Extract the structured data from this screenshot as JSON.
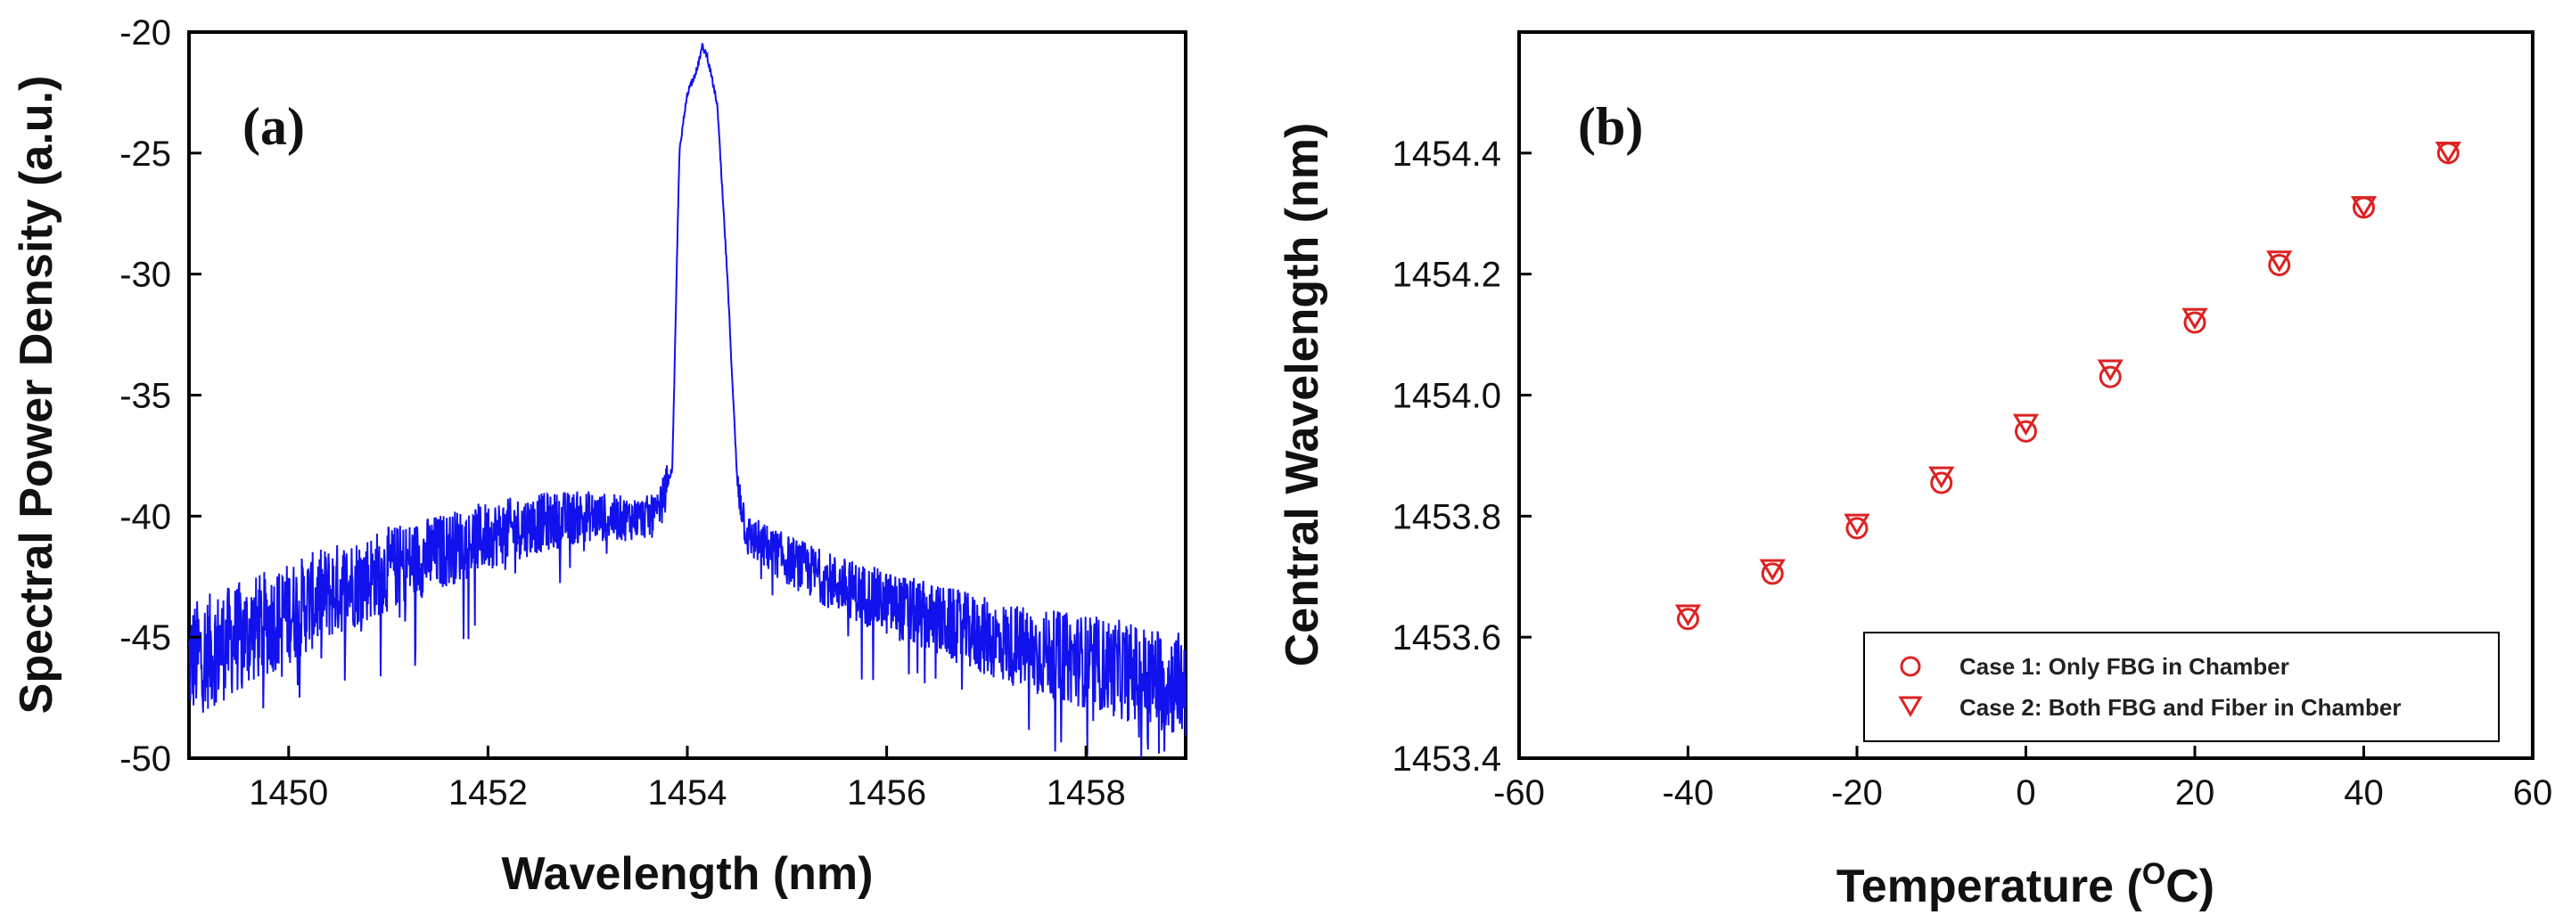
{
  "chart_data": [
    {
      "type": "line",
      "panel_label": "(a)",
      "xlabel": "Wavelength (nm)",
      "ylabel": "Spectral Power Density (a.u.)",
      "xlim": [
        1449,
        1459
      ],
      "ylim": [
        -50,
        -20
      ],
      "x_ticks": [
        1450,
        1452,
        1454,
        1456,
        1458
      ],
      "y_ticks": [
        -50,
        -45,
        -40,
        -35,
        -30,
        -25,
        -20
      ],
      "series": [
        {
          "color": "#1111ee",
          "envelope": {
            "x": [
              1449.0,
              1449.5,
              1450.0,
              1450.5,
              1451.0,
              1451.5,
              1452.0,
              1452.5,
              1453.0,
              1453.4,
              1453.7,
              1453.85,
              1453.92,
              1454.0,
              1454.1,
              1454.15,
              1454.2,
              1454.3,
              1454.4,
              1454.5,
              1454.6,
              1455.0,
              1455.5,
              1456.0,
              1456.5,
              1457.0,
              1457.5,
              1458.0,
              1458.5,
              1459.0
            ],
            "y": [
              -46.0,
              -45.0,
              -44.0,
              -43.0,
              -42.2,
              -41.5,
              -40.8,
              -40.3,
              -40.0,
              -40.1,
              -40.0,
              -38.0,
              -25.0,
              -22.5,
              -21.5,
              -20.6,
              -21.0,
              -23.0,
              -30.0,
              -38.5,
              -40.8,
              -41.8,
              -42.8,
              -43.6,
              -44.3,
              -45.0,
              -45.6,
              -46.0,
              -46.5,
              -47.0
            ]
          },
          "noise_amplitude": "larger in wings, negligible at peak"
        }
      ]
    },
    {
      "type": "scatter",
      "panel_label": "(b)",
      "xlabel": "Temperature (",
      "xlabel_superscript": "O",
      "xlabel_suffix": "C)",
      "ylabel": "Central Wavelength (nm)",
      "xlim": [
        -60,
        60
      ],
      "ylim": [
        1453.4,
        1454.6
      ],
      "x_ticks": [
        -60,
        -40,
        -20,
        0,
        20,
        40,
        60
      ],
      "y_ticks": [
        "1453.4",
        "1453.6",
        "1453.8",
        "1454.0",
        "1454.2",
        "1454.4"
      ],
      "legend_position": "bottom-right",
      "series": [
        {
          "name": "Case 1: Only FBG in Chamber",
          "marker": "circle",
          "color": "#dd2222",
          "x": [
            -40,
            -30,
            -20,
            -10,
            0,
            10,
            20,
            30,
            40,
            50
          ],
          "y": [
            1453.63,
            1453.705,
            1453.78,
            1453.855,
            1453.94,
            1454.03,
            1454.12,
            1454.215,
            1454.31,
            1454.4
          ]
        },
        {
          "name": "Case 2: Both FBG and Fiber in Chamber",
          "marker": "triangle-down",
          "color": "#dd2222",
          "x": [
            -40,
            -30,
            -20,
            -10,
            0,
            10,
            20,
            30,
            40,
            50
          ],
          "y": [
            1453.64,
            1453.715,
            1453.79,
            1453.868,
            1453.955,
            1454.045,
            1454.13,
            1454.225,
            1454.315,
            1454.405
          ]
        }
      ]
    }
  ]
}
